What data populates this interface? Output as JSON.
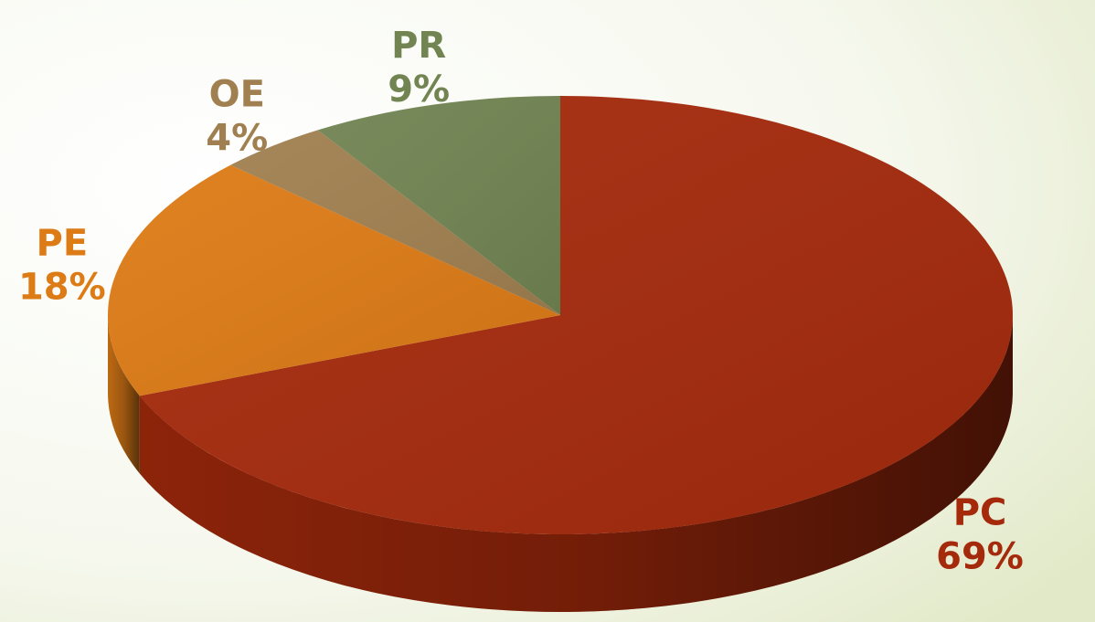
{
  "chart_data": {
    "type": "pie3d",
    "categories": [
      "PC",
      "PE",
      "OE",
      "PR"
    ],
    "values": [
      69,
      18,
      4,
      9
    ],
    "value_labels": [
      "69%",
      "18%",
      "4%",
      "9%"
    ],
    "colors": [
      "#a52a0c",
      "#dd7b16",
      "#a08050",
      "#718452"
    ]
  }
}
